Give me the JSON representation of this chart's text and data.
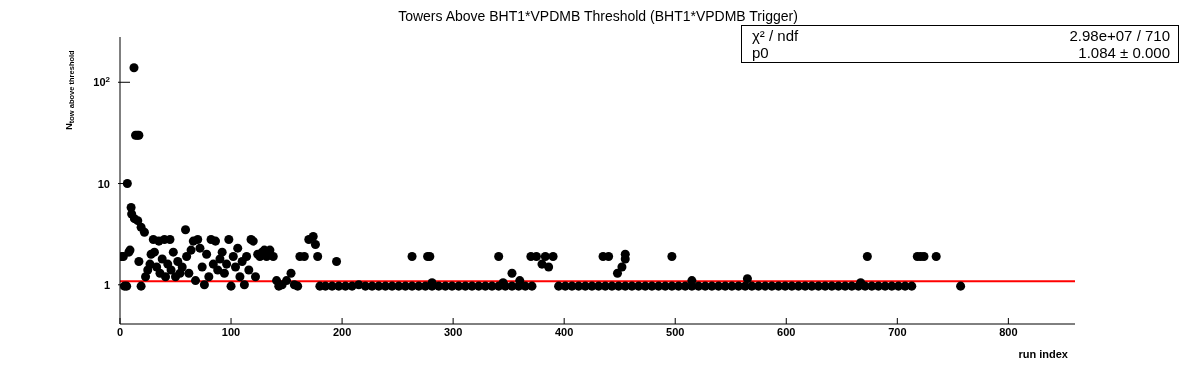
{
  "chart_data": {
    "type": "scatter",
    "title": "Towers Above BHT1*VPDMB Threshold (BHT1*VPDMB Trigger)",
    "xlabel": "run index",
    "ylabel": "N$_{tow above threshold}$",
    "x": [
      1.5,
      3,
      4,
      6,
      6.6,
      8,
      9,
      10,
      10.5,
      12.6,
      13,
      14,
      15.6,
      17,
      16,
      19,
      17,
      19,
      22,
      23,
      25,
      27,
      28,
      30,
      31,
      33,
      35,
      36,
      38,
      40,
      41,
      43,
      45,
      46,
      48,
      50,
      52,
      54,
      56,
      59,
      60,
      62,
      64,
      66,
      68,
      70,
      72,
      74,
      76,
      78,
      80,
      82,
      84,
      86,
      88,
      90,
      92,
      94,
      96,
      98,
      100,
      102,
      104,
      106,
      108,
      110,
      112,
      114,
      116,
      118,
      120,
      122,
      124,
      126,
      128,
      130,
      132,
      135,
      138,
      141,
      143,
      146,
      150,
      154,
      157,
      160,
      162,
      166,
      170,
      174,
      176,
      178,
      180,
      195,
      185,
      191,
      197,
      203,
      209,
      215,
      221,
      227,
      233,
      239,
      245,
      251,
      257,
      263,
      269,
      275,
      281,
      287,
      293,
      299,
      305,
      311,
      317,
      323,
      329,
      335,
      341,
      347,
      353,
      359,
      365,
      371,
      395,
      401,
      407,
      413,
      419,
      425,
      431,
      437,
      443,
      449,
      455,
      461,
      467,
      473,
      479,
      485,
      491,
      497,
      503,
      509,
      515,
      521,
      527,
      533,
      539,
      545,
      551,
      557,
      563,
      569,
      575,
      581,
      587,
      593,
      599,
      605,
      611,
      617,
      623,
      629,
      635,
      641,
      647,
      653,
      659,
      665,
      671,
      677,
      683,
      689,
      695,
      701,
      707,
      713,
      263,
      277,
      279,
      281,
      341,
      345,
      353,
      360,
      370,
      375,
      380,
      383,
      386,
      390,
      435,
      440,
      448,
      452,
      455,
      455,
      497,
      515,
      565,
      667,
      673,
      718,
      721,
      724,
      735,
      757
    ],
    "values": [
      1.9,
      1.9,
      0.97,
      0.97,
      10,
      2.1,
      2.2,
      5.8,
      5,
      139,
      4.5,
      30,
      30,
      30,
      4.3,
      3.7,
      1.7,
      0.97,
      3.3,
      1.2,
      1.4,
      1.6,
      2,
      2.8,
      2.1,
      1.5,
      2.7,
      1.3,
      1.8,
      2.8,
      1.2,
      1.6,
      2.8,
      1.4,
      2.1,
      1.2,
      1.7,
      1.3,
      1.5,
      3.5,
      1.9,
      1.3,
      2.2,
      2.7,
      1.1,
      2.8,
      2.3,
      1.5,
      1,
      2,
      1.2,
      2.8,
      1.6,
      2.7,
      1.4,
      1.8,
      2.1,
      1.3,
      1.6,
      2.8,
      0.97,
      1.9,
      1.5,
      2.3,
      1.2,
      1.7,
      1,
      1.9,
      1.4,
      2.8,
      2.7,
      1.2,
      2,
      1.9,
      2.1,
      2.2,
      1.9,
      2.2,
      1.9,
      1.1,
      0.97,
      1,
      1.1,
      1.3,
      1,
      0.97,
      1.9,
      1.9,
      2.8,
      3,
      2.5,
      1.9,
      0.97,
      1.7,
      0.97,
      0.97,
      0.97,
      0.97,
      0.97,
      1,
      0.97,
      0.97,
      0.97,
      0.97,
      0.97,
      0.97,
      0.97,
      0.97,
      0.97,
      0.97,
      0.97,
      0.97,
      0.97,
      0.97,
      0.97,
      0.97,
      0.97,
      0.97,
      0.97,
      0.97,
      0.97,
      0.97,
      0.97,
      0.97,
      0.97,
      0.97,
      0.97,
      0.97,
      0.97,
      0.97,
      0.97,
      0.97,
      0.97,
      0.97,
      0.97,
      0.97,
      0.97,
      0.97,
      0.97,
      0.97,
      0.97,
      0.97,
      0.97,
      0.97,
      0.97,
      0.97,
      0.97,
      0.97,
      0.97,
      0.97,
      0.97,
      0.97,
      0.97,
      0.97,
      0.97,
      0.97,
      0.97,
      0.97,
      0.97,
      0.97,
      0.97,
      0.97,
      0.97,
      0.97,
      0.97,
      0.97,
      0.97,
      0.97,
      0.97,
      0.97,
      0.97,
      0.97,
      0.97,
      0.97,
      0.97,
      0.97,
      0.97,
      0.97,
      0.97,
      0.97,
      1.9,
      1.9,
      1.9,
      1.05,
      1.9,
      1.05,
      1.3,
      1.1,
      1.9,
      1.9,
      1.6,
      1.9,
      1.5,
      1.9,
      1.9,
      1.9,
      1.3,
      1.5,
      1.8,
      2,
      1.9,
      1.1,
      1.15,
      1.05,
      1.9,
      1.9,
      1.9,
      1.9,
      1.9,
      0.97
    ],
    "color": "#000000",
    "marker": "circle",
    "log": "y",
    "xlim": [
      0,
      860
    ],
    "xticks": [
      0,
      100,
      200,
      300,
      400,
      500,
      600,
      700,
      800
    ],
    "ylim": [
      0.41,
      280
    ],
    "yticks": [
      1,
      10,
      {
        "value": 100,
        "label": "10$^{2}$"
      }
    ],
    "ref_lines": [
      {
        "axis": "y",
        "value": 1.084,
        "color": "#ff0000"
      }
    ],
    "annotations": [
      "χ² / ndf",
      "2.98e+07 / 710",
      "p0",
      "1.084 ± 0.000"
    ],
    "grid": false
  }
}
